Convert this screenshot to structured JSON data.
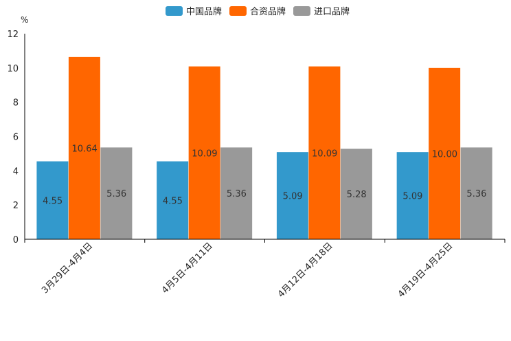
{
  "chart_data": {
    "type": "bar",
    "title": "",
    "xlabel": "",
    "ylabel": "%",
    "ylim": [
      0,
      12
    ],
    "yticks": [
      0,
      2,
      4,
      6,
      8,
      10,
      12
    ],
    "grid": false,
    "legend_position": "top-center",
    "categories": [
      "3月29日-4月4日",
      "4月5日-4月11日",
      "4月12日-4月18日",
      "4月19日-4月25日"
    ],
    "series": [
      {
        "name": "中国品牌",
        "color": "#3399cc",
        "values": [
          4.55,
          4.55,
          5.09,
          5.09
        ]
      },
      {
        "name": "合资品牌",
        "color": "#ff6600",
        "values": [
          10.64,
          10.09,
          10.09,
          10.0
        ]
      },
      {
        "name": "进口品牌",
        "color": "#999999",
        "values": [
          5.36,
          5.36,
          5.28,
          5.36
        ]
      }
    ]
  }
}
